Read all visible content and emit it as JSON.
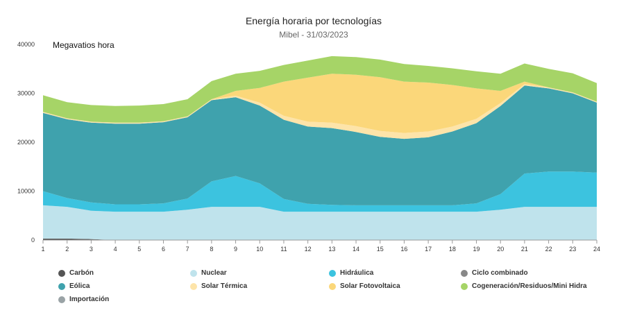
{
  "chart_data": {
    "type": "area",
    "stacked": true,
    "title": "Energía horaria por tecnologías",
    "subtitle": "Mibel - 31/03/2023",
    "ylabel": "Megavatios hora",
    "xlabel": "",
    "ylim": [
      0,
      40000
    ],
    "yticks": [
      "0",
      "10000",
      "20000",
      "30000",
      "40000"
    ],
    "x": [
      1,
      2,
      3,
      4,
      5,
      6,
      7,
      8,
      9,
      10,
      11,
      12,
      13,
      14,
      15,
      16,
      17,
      18,
      19,
      20,
      21,
      22,
      23,
      24
    ],
    "series": [
      {
        "name": "Carbón",
        "color": "#555555",
        "values": [
          300,
          300,
          200,
          0,
          0,
          0,
          0,
          0,
          0,
          0,
          0,
          0,
          0,
          0,
          0,
          0,
          0,
          0,
          0,
          0,
          0,
          0,
          0,
          0
        ]
      },
      {
        "name": "Nuclear",
        "color": "#bfe3ec",
        "values": [
          6800,
          6500,
          5800,
          5800,
          5800,
          5800,
          6200,
          6800,
          6800,
          6800,
          5800,
          5800,
          5800,
          5800,
          5800,
          5800,
          5800,
          5800,
          5800,
          6200,
          6800,
          6800,
          6800,
          6800
        ]
      },
      {
        "name": "Hidráulica",
        "color": "#3cc3df",
        "values": [
          2900,
          1800,
          1700,
          1500,
          1500,
          1700,
          2300,
          5200,
          6300,
          4800,
          2600,
          1600,
          1400,
          1300,
          1300,
          1300,
          1300,
          1300,
          1700,
          3200,
          6800,
          7200,
          7200,
          7000
        ]
      },
      {
        "name": "Ciclo combinado",
        "color": "#888888",
        "values": [
          0,
          0,
          0,
          0,
          0,
          0,
          0,
          0,
          0,
          0,
          0,
          0,
          0,
          0,
          0,
          0,
          0,
          0,
          0,
          0,
          0,
          0,
          0,
          0
        ]
      },
      {
        "name": "Eólica",
        "color": "#3fa2ad",
        "values": [
          16000,
          16100,
          16300,
          16500,
          16500,
          16600,
          16600,
          16600,
          16100,
          15900,
          16200,
          15800,
          15700,
          15000,
          14000,
          13600,
          13900,
          15100,
          16400,
          18000,
          18000,
          17000,
          16000,
          14300
        ]
      },
      {
        "name": "Solar Térmica",
        "color": "#fde4a9",
        "values": [
          200,
          200,
          200,
          200,
          200,
          200,
          200,
          200,
          300,
          600,
          800,
          1000,
          1100,
          1200,
          1200,
          1200,
          1200,
          1000,
          900,
          600,
          300,
          200,
          200,
          200
        ]
      },
      {
        "name": "Solar Fotovoltaica",
        "color": "#fbd77a",
        "values": [
          0,
          0,
          0,
          0,
          0,
          0,
          0,
          0,
          1000,
          3000,
          7000,
          9000,
          10000,
          10500,
          11000,
          10500,
          10000,
          8500,
          6200,
          2500,
          500,
          0,
          0,
          0
        ]
      },
      {
        "name": "Cogeneración/Residuos/Mini Hidra",
        "color": "#a6d467",
        "values": [
          3400,
          3300,
          3400,
          3400,
          3500,
          3500,
          3500,
          3700,
          3500,
          3500,
          3400,
          3500,
          3600,
          3600,
          3600,
          3600,
          3400,
          3400,
          3500,
          3500,
          3700,
          3800,
          3900,
          3800
        ]
      },
      {
        "name": "Importación",
        "color": "#9aa3a6",
        "values": [
          0,
          0,
          0,
          0,
          0,
          0,
          0,
          0,
          0,
          0,
          0,
          0,
          0,
          0,
          0,
          0,
          0,
          0,
          0,
          0,
          0,
          0,
          0,
          0
        ]
      }
    ],
    "grid": false,
    "legend": "bottom"
  }
}
